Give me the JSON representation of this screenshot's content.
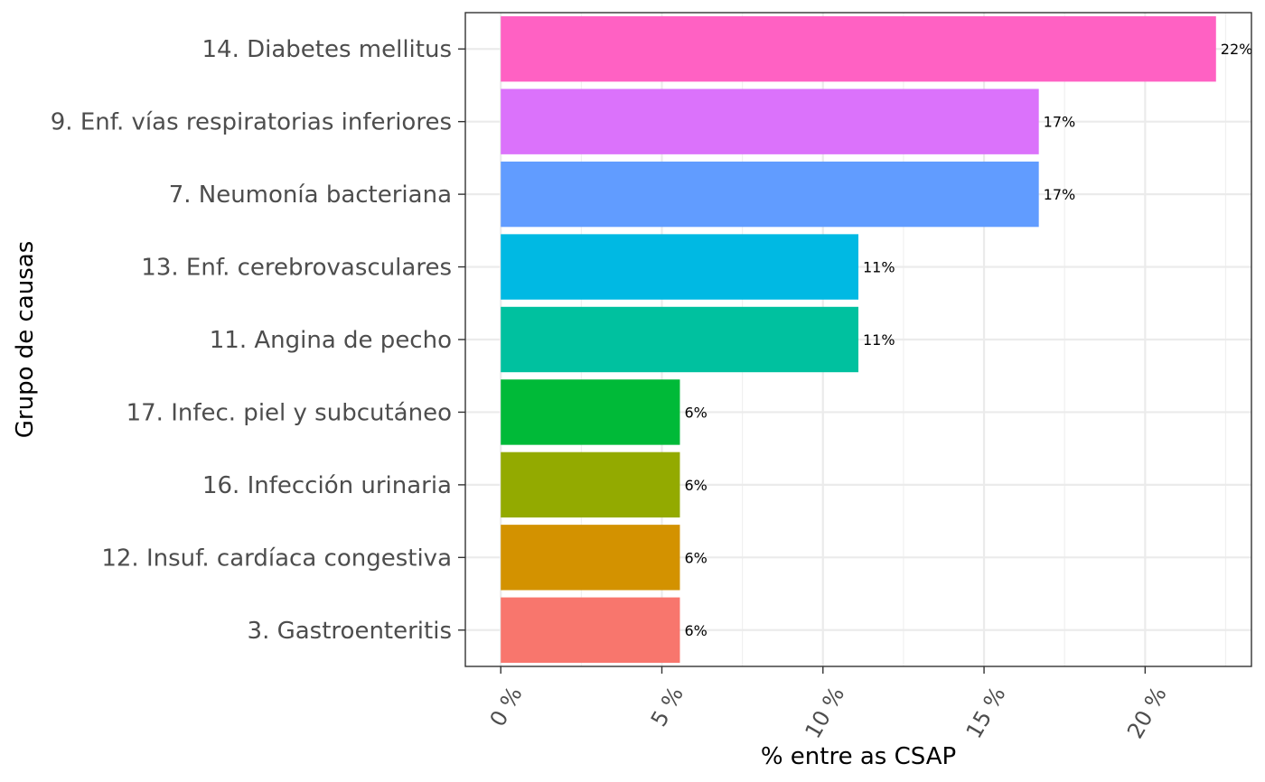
{
  "chart_data": {
    "type": "bar",
    "orientation": "horizontal",
    "xlabel": "% entre as CSAP",
    "ylabel": "Grupo de causas",
    "xlim": [
      -1.1,
      23.3
    ],
    "x_ticks": [
      {
        "value": 0,
        "label": "0 %"
      },
      {
        "value": 5,
        "label": "5 %"
      },
      {
        "value": 10,
        "label": "10 %"
      },
      {
        "value": 15,
        "label": "15 %"
      },
      {
        "value": 20,
        "label": "20 %"
      }
    ],
    "grid": true,
    "legend": "none",
    "bars": [
      {
        "category": "14. Diabetes mellitus",
        "value": 22.2,
        "label": "22%",
        "color": "#FF61C3"
      },
      {
        "category": "9. Enf. vías respiratorias inferiores",
        "value": 16.7,
        "label": "17%",
        "color": "#DB72FB"
      },
      {
        "category": "7. Neumonía bacteriana",
        "value": 16.7,
        "label": "17%",
        "color": "#619CFF"
      },
      {
        "category": "13. Enf. cerebrovasculares",
        "value": 11.1,
        "label": "11%",
        "color": "#00B9E3"
      },
      {
        "category": "11. Angina de pecho",
        "value": 11.1,
        "label": "11%",
        "color": "#00C19F"
      },
      {
        "category": "17. Infec. piel y subcutáneo",
        "value": 5.56,
        "label": "6%",
        "color": "#00BA38"
      },
      {
        "category": "16. Infección urinaria",
        "value": 5.56,
        "label": "6%",
        "color": "#93AA00"
      },
      {
        "category": "12. Insuf. cardíaca congestiva",
        "value": 5.56,
        "label": "6%",
        "color": "#D39200"
      },
      {
        "category": "3. Gastroenteritis",
        "value": 5.56,
        "label": "6%",
        "color": "#F8766D"
      }
    ]
  }
}
